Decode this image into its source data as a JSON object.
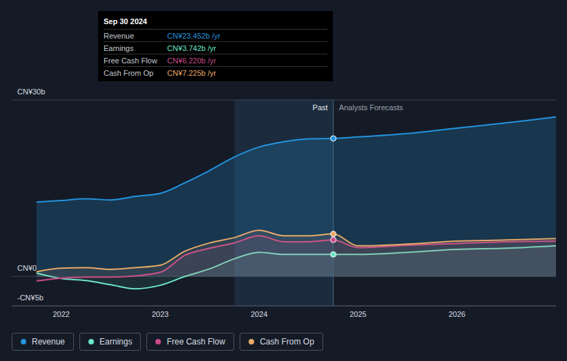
{
  "chart_data": {
    "type": "area",
    "x": [
      2021.75,
      2022,
      2022.25,
      2022.5,
      2022.75,
      2023,
      2023.25,
      2023.5,
      2023.75,
      2024,
      2024.25,
      2024.5,
      2024.75,
      2025,
      2025.5,
      2026,
      2026.5,
      2027
    ],
    "series": [
      {
        "name": "Revenue",
        "color": "#2394df",
        "values": [
          12.66,
          12.9,
          13.2,
          13.0,
          13.6,
          14.1,
          15.9,
          18.0,
          20.3,
          22.0,
          22.9,
          23.4,
          23.452,
          23.7,
          24.3,
          25.2,
          26.1,
          27.1
        ]
      },
      {
        "name": "Earnings",
        "color": "#6ce5c8",
        "values": [
          0.6,
          -0.35,
          -0.7,
          -1.4,
          -2.1,
          -1.5,
          0,
          1.3,
          3.0,
          4.1,
          3.75,
          3.75,
          3.742,
          3.75,
          4.1,
          4.6,
          4.8,
          5.2
        ]
      },
      {
        "name": "Free Cash Flow",
        "color": "#c94b8a",
        "values": [
          -0.8,
          -0.3,
          -0.1,
          -0.1,
          0.1,
          0.7,
          3.6,
          4.8,
          5.7,
          6.9,
          5.9,
          5.9,
          6.22,
          4.9,
          5.3,
          5.6,
          5.9,
          6.0
        ]
      },
      {
        "name": "Cash From Op",
        "color": "#e8a968",
        "values": [
          0.8,
          1.4,
          1.5,
          1.2,
          1.5,
          1.9,
          4.3,
          5.7,
          6.6,
          7.85,
          6.9,
          6.9,
          7.225,
          5.2,
          5.5,
          6.0,
          6.2,
          6.45
        ]
      }
    ],
    "xlim": [
      2021.5,
      2027
    ],
    "xticks": [
      2022,
      2023,
      2024,
      2025,
      2026
    ],
    "ylim": [
      -5,
      30
    ],
    "yticks": [
      {
        "value": -5,
        "label": "-CN¥5b"
      },
      {
        "value": 0,
        "label": "CN¥0"
      },
      {
        "value": 30,
        "label": "CN¥30b"
      }
    ],
    "grid": true,
    "legend": "bottom-left",
    "annotations": [
      "Past",
      "Analysts Forecasts"
    ],
    "highlight": [
      2023.75,
      2024.75
    ],
    "forecast_start": 2024.75,
    "tooltip": {
      "title": "Sep 30 2024",
      "x": 2024.75,
      "rows": [
        {
          "name": "Revenue",
          "value": 23.452,
          "label": "CN¥23.452b /yr"
        },
        {
          "name": "Earnings",
          "value": 3.742,
          "label": "CN¥3.742b /yr"
        },
        {
          "name": "Free Cash Flow",
          "value": 6.22,
          "label": "CN¥6.220b /yr"
        },
        {
          "name": "Cash From Op",
          "value": 7.225,
          "label": "CN¥7.225b /yr"
        }
      ]
    }
  }
}
